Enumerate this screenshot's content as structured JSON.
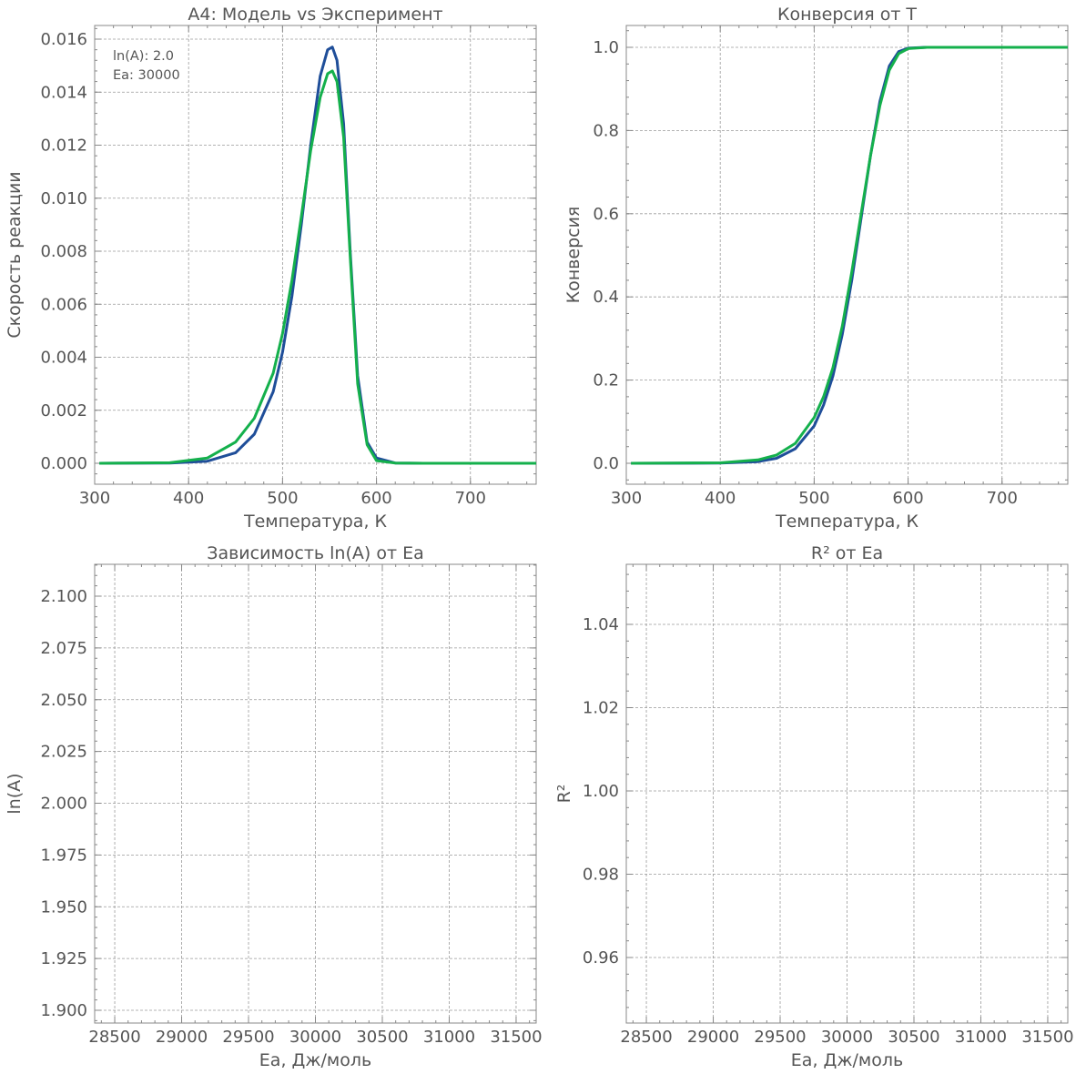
{
  "figure": {
    "colors": {
      "model": "#1f4e99",
      "experiment": "#14b04c",
      "text": "#555555",
      "grid": "#9a9a9a",
      "frame": "#888888"
    }
  },
  "chart_data": [
    {
      "type": "line",
      "title": "A4: Модель vs Эксперимент",
      "xlabel": "Температура, К",
      "ylabel": "Скорость реакции",
      "xlim": [
        300,
        770
      ],
      "ylim": [
        0,
        0.0162
      ],
      "xticks": [
        300,
        400,
        500,
        600,
        700
      ],
      "xtick_labels": [
        "300",
        "400",
        "500",
        "600",
        "700"
      ],
      "yticks": [
        0,
        0.002,
        0.004,
        0.006,
        0.008,
        0.01,
        0.012,
        0.014,
        0.016
      ],
      "ytick_labels": [
        "0.000",
        "0.002",
        "0.004",
        "0.006",
        "0.008",
        "0.010",
        "0.012",
        "0.014",
        "0.016"
      ],
      "grid": true,
      "annotations": [
        "ln(A): 2.0",
        "Ea: 30000"
      ],
      "x": [
        305,
        380,
        420,
        450,
        470,
        490,
        500,
        510,
        520,
        530,
        540,
        548,
        553,
        558,
        565,
        572,
        580,
        590,
        600,
        620,
        650,
        700,
        770
      ],
      "series": [
        {
          "color": "#1f4e99",
          "values": [
            0,
            1e-05,
            8e-05,
            0.0004,
            0.0011,
            0.0027,
            0.0042,
            0.0063,
            0.009,
            0.012,
            0.0146,
            0.0156,
            0.0157,
            0.0152,
            0.0128,
            0.008,
            0.0033,
            0.0008,
            0.0002,
            1e-05,
            0,
            0,
            0
          ]
        },
        {
          "color": "#14b04c",
          "values": [
            0,
            2e-05,
            0.0002,
            0.0008,
            0.0017,
            0.0034,
            0.0049,
            0.0069,
            0.0093,
            0.0118,
            0.0138,
            0.0147,
            0.0148,
            0.0144,
            0.0123,
            0.0078,
            0.003,
            0.0007,
            0.0001,
            1e-05,
            0,
            0,
            0
          ]
        }
      ]
    },
    {
      "type": "line",
      "title": "Конверсия от T",
      "xlabel": "Температура, К",
      "ylabel": "Конверсия",
      "xlim": [
        300,
        770
      ],
      "ylim": [
        0,
        1.0
      ],
      "xticks": [
        300,
        400,
        500,
        600,
        700
      ],
      "xtick_labels": [
        "300",
        "400",
        "500",
        "600",
        "700"
      ],
      "yticks": [
        0,
        0.2,
        0.4,
        0.6,
        0.8,
        1.0
      ],
      "ytick_labels": [
        "0.0",
        "0.2",
        "0.4",
        "0.6",
        "0.8",
        "1.0"
      ],
      "grid": true,
      "x": [
        305,
        400,
        440,
        460,
        480,
        500,
        510,
        520,
        530,
        540,
        550,
        560,
        570,
        580,
        590,
        600,
        620,
        700,
        770
      ],
      "series": [
        {
          "color": "#1f4e99",
          "values": [
            0,
            0.0005,
            0.004,
            0.012,
            0.035,
            0.09,
            0.14,
            0.21,
            0.31,
            0.44,
            0.59,
            0.74,
            0.87,
            0.955,
            0.99,
            0.998,
            1.0,
            1.0,
            1.0
          ]
        },
        {
          "color": "#14b04c",
          "values": [
            0,
            0.001,
            0.008,
            0.02,
            0.048,
            0.11,
            0.16,
            0.23,
            0.33,
            0.46,
            0.6,
            0.74,
            0.86,
            0.945,
            0.985,
            0.997,
            1.0,
            1.0,
            1.0
          ]
        }
      ]
    },
    {
      "type": "scatter",
      "title": "Зависимость ln(A) от Ea",
      "xlabel": "Ea, Дж/моль",
      "ylabel": "ln(A)",
      "xlim": [
        28350,
        31650
      ],
      "ylim": [
        1.895,
        2.115
      ],
      "xticks": [
        28500,
        29000,
        29500,
        30000,
        30500,
        31000,
        31500
      ],
      "xtick_labels": [
        "28500",
        "29000",
        "29500",
        "30000",
        "30500",
        "31000",
        "31500"
      ],
      "yticks": [
        1.9,
        1.925,
        1.95,
        1.975,
        2.0,
        2.025,
        2.05,
        2.075,
        2.1
      ],
      "ytick_labels": [
        "1.900",
        "1.925",
        "1.950",
        "1.975",
        "2.000",
        "2.025",
        "2.050",
        "2.075",
        "2.100"
      ],
      "grid": true,
      "x": [],
      "values": []
    },
    {
      "type": "scatter",
      "title": "R² от Ea",
      "xlabel": "Ea, Дж/моль",
      "ylabel": "R²",
      "xlim": [
        28350,
        31650
      ],
      "ylim": [
        0.945,
        1.055
      ],
      "xticks": [
        28500,
        29000,
        29500,
        30000,
        30500,
        31000,
        31500
      ],
      "xtick_labels": [
        "28500",
        "29000",
        "29500",
        "30000",
        "30500",
        "31000",
        "31500"
      ],
      "yticks": [
        0.96,
        0.98,
        1.0,
        1.02,
        1.04
      ],
      "ytick_labels": [
        "0.96",
        "0.98",
        "1.00",
        "1.02",
        "1.04"
      ],
      "grid": true,
      "x": [],
      "values": []
    }
  ]
}
